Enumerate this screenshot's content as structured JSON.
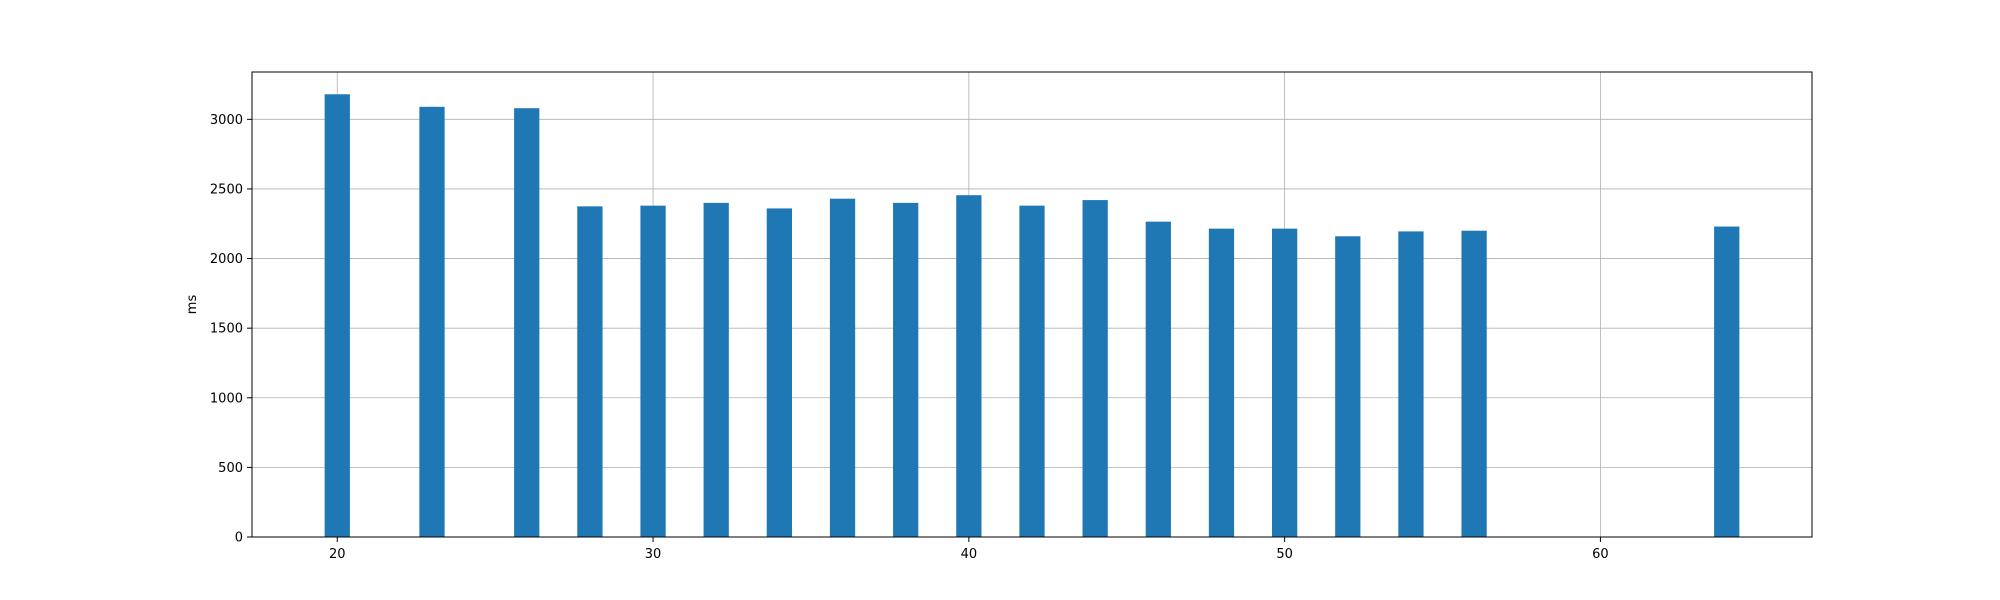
{
  "chart_data": {
    "type": "bar",
    "title": "",
    "xlabel": "",
    "ylabel": "ms",
    "xlim": [
      17.3,
      66.7
    ],
    "ylim": [
      0,
      3340
    ],
    "grid": true,
    "bar_width": 0.8,
    "bar_color": "#1f77b4",
    "x_ticks": [
      20,
      30,
      40,
      50,
      60
    ],
    "y_ticks": [
      0,
      500,
      1000,
      1500,
      2000,
      2500,
      3000
    ],
    "x": [
      20,
      23,
      26,
      28,
      30,
      32,
      34,
      36,
      38,
      40,
      42,
      44,
      46,
      48,
      50,
      52,
      54,
      56,
      64
    ],
    "values": [
      3180,
      3090,
      3080,
      2375,
      2380,
      2400,
      2360,
      2430,
      2400,
      2455,
      2380,
      2420,
      2265,
      2215,
      2215,
      2160,
      2195,
      2200,
      2230
    ]
  }
}
